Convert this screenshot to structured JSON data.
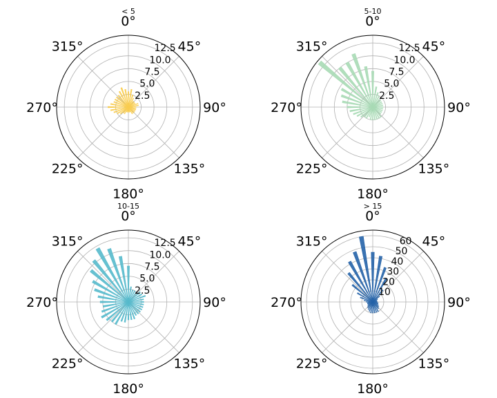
{
  "chart_data": [
    {
      "type": "polar-bar",
      "title": "< 5",
      "color": "#f9cd50",
      "rlim": [
        0,
        14
      ],
      "rticks": [
        2.5,
        5.0,
        7.5,
        10.0,
        12.5
      ],
      "rtick_labels": [
        "2.5",
        "5.0",
        "7.5",
        "10.0",
        "12.5"
      ],
      "theta_labels": [
        "0°",
        "45°",
        "90°",
        "135°",
        "180°",
        "225°",
        "270°",
        "315°"
      ],
      "bins_deg": [
        0,
        10,
        20,
        30,
        40,
        50,
        60,
        70,
        80,
        90,
        100,
        110,
        120,
        130,
        140,
        150,
        160,
        170,
        180,
        190,
        200,
        210,
        220,
        230,
        240,
        250,
        260,
        270,
        280,
        290,
        300,
        310,
        320,
        330,
        340,
        350
      ],
      "values": [
        3,
        3.5,
        2.5,
        2,
        1.5,
        1.5,
        1.5,
        2,
        2,
        1.5,
        1.5,
        1.5,
        1.5,
        1.5,
        1.5,
        1.5,
        1,
        1,
        1,
        1,
        1,
        1.5,
        1.5,
        2,
        2.5,
        3,
        3.5,
        4,
        3.5,
        3,
        3,
        3,
        3,
        3.5,
        4,
        3.5
      ]
    },
    {
      "type": "polar-bar",
      "title": "5-10",
      "color": "#a8dab5",
      "rlim": [
        0,
        14
      ],
      "rticks": [
        2.5,
        5.0,
        7.5,
        10.0,
        12.5
      ],
      "rtick_labels": [
        "2.5",
        "5.0",
        "7.5",
        "10.0",
        "12.5"
      ],
      "theta_labels": [
        "0°",
        "45°",
        "90°",
        "135°",
        "180°",
        "225°",
        "270°",
        "315°"
      ],
      "bins_deg": [
        0,
        10,
        20,
        30,
        40,
        50,
        60,
        70,
        80,
        90,
        100,
        110,
        120,
        130,
        140,
        150,
        160,
        170,
        180,
        190,
        200,
        210,
        220,
        230,
        240,
        250,
        260,
        270,
        280,
        290,
        300,
        310,
        320,
        330,
        340,
        350
      ],
      "values": [
        7,
        4,
        3,
        2.5,
        2,
        2,
        2,
        2,
        2,
        2,
        2,
        2,
        2,
        2,
        2.5,
        2.5,
        2.5,
        2.5,
        2.5,
        2.5,
        2,
        2.5,
        2.5,
        3,
        3.5,
        4,
        4.5,
        5,
        6,
        6.5,
        7,
        13.5,
        10,
        10,
        11,
        8
      ]
    },
    {
      "type": "polar-bar",
      "title": "10-15",
      "color": "#57bacc",
      "rlim": [
        0,
        14
      ],
      "rticks": [
        2.5,
        5.0,
        7.5,
        10.0,
        12.5
      ],
      "rtick_labels": [
        "2.5",
        "5.0",
        "7.5",
        "10.0",
        "12.5"
      ],
      "theta_labels": [
        "0°",
        "45°",
        "90°",
        "135°",
        "180°",
        "225°",
        "270°",
        "315°"
      ],
      "bins_deg": [
        0,
        10,
        20,
        30,
        40,
        50,
        60,
        70,
        80,
        90,
        100,
        110,
        120,
        130,
        140,
        150,
        160,
        170,
        180,
        190,
        200,
        210,
        220,
        230,
        240,
        250,
        260,
        270,
        280,
        290,
        300,
        310,
        320,
        330,
        340,
        350
      ],
      "values": [
        7,
        3,
        2.5,
        2.5,
        2.5,
        3,
        3,
        3.5,
        3,
        3,
        3,
        3,
        3,
        3,
        3,
        3,
        3.5,
        3.5,
        3.5,
        4,
        4,
        5,
        5,
        5.5,
        6,
        5.5,
        5,
        5.5,
        6,
        7,
        8,
        9.5,
        10.5,
        12,
        11,
        9
      ]
    },
    {
      "type": "polar-bar",
      "title": "> 15",
      "color": "#2563a8",
      "rlim": [
        0,
        65
      ],
      "rticks": [
        10,
        20,
        30,
        40,
        50,
        60
      ],
      "rtick_labels": [
        "10",
        "20",
        "30",
        "40",
        "50",
        "60"
      ],
      "theta_labels": [
        "0°",
        "45°",
        "90°",
        "135°",
        "180°",
        "225°",
        "270°",
        "315°"
      ],
      "bins_deg": [
        0,
        10,
        20,
        30,
        40,
        50,
        60,
        70,
        80,
        90,
        100,
        110,
        120,
        130,
        140,
        150,
        160,
        170,
        180,
        190,
        200,
        210,
        220,
        230,
        240,
        250,
        260,
        270,
        280,
        290,
        300,
        310,
        320,
        330,
        340,
        350
      ],
      "values": [
        45,
        42,
        33,
        24,
        14,
        8,
        5,
        4,
        4,
        4,
        5,
        5,
        6,
        7,
        8,
        10,
        10,
        10,
        10,
        10,
        9,
        8,
        7,
        6,
        5,
        5,
        5,
        6,
        8,
        12,
        16,
        24,
        34,
        42,
        48,
        60
      ]
    }
  ]
}
